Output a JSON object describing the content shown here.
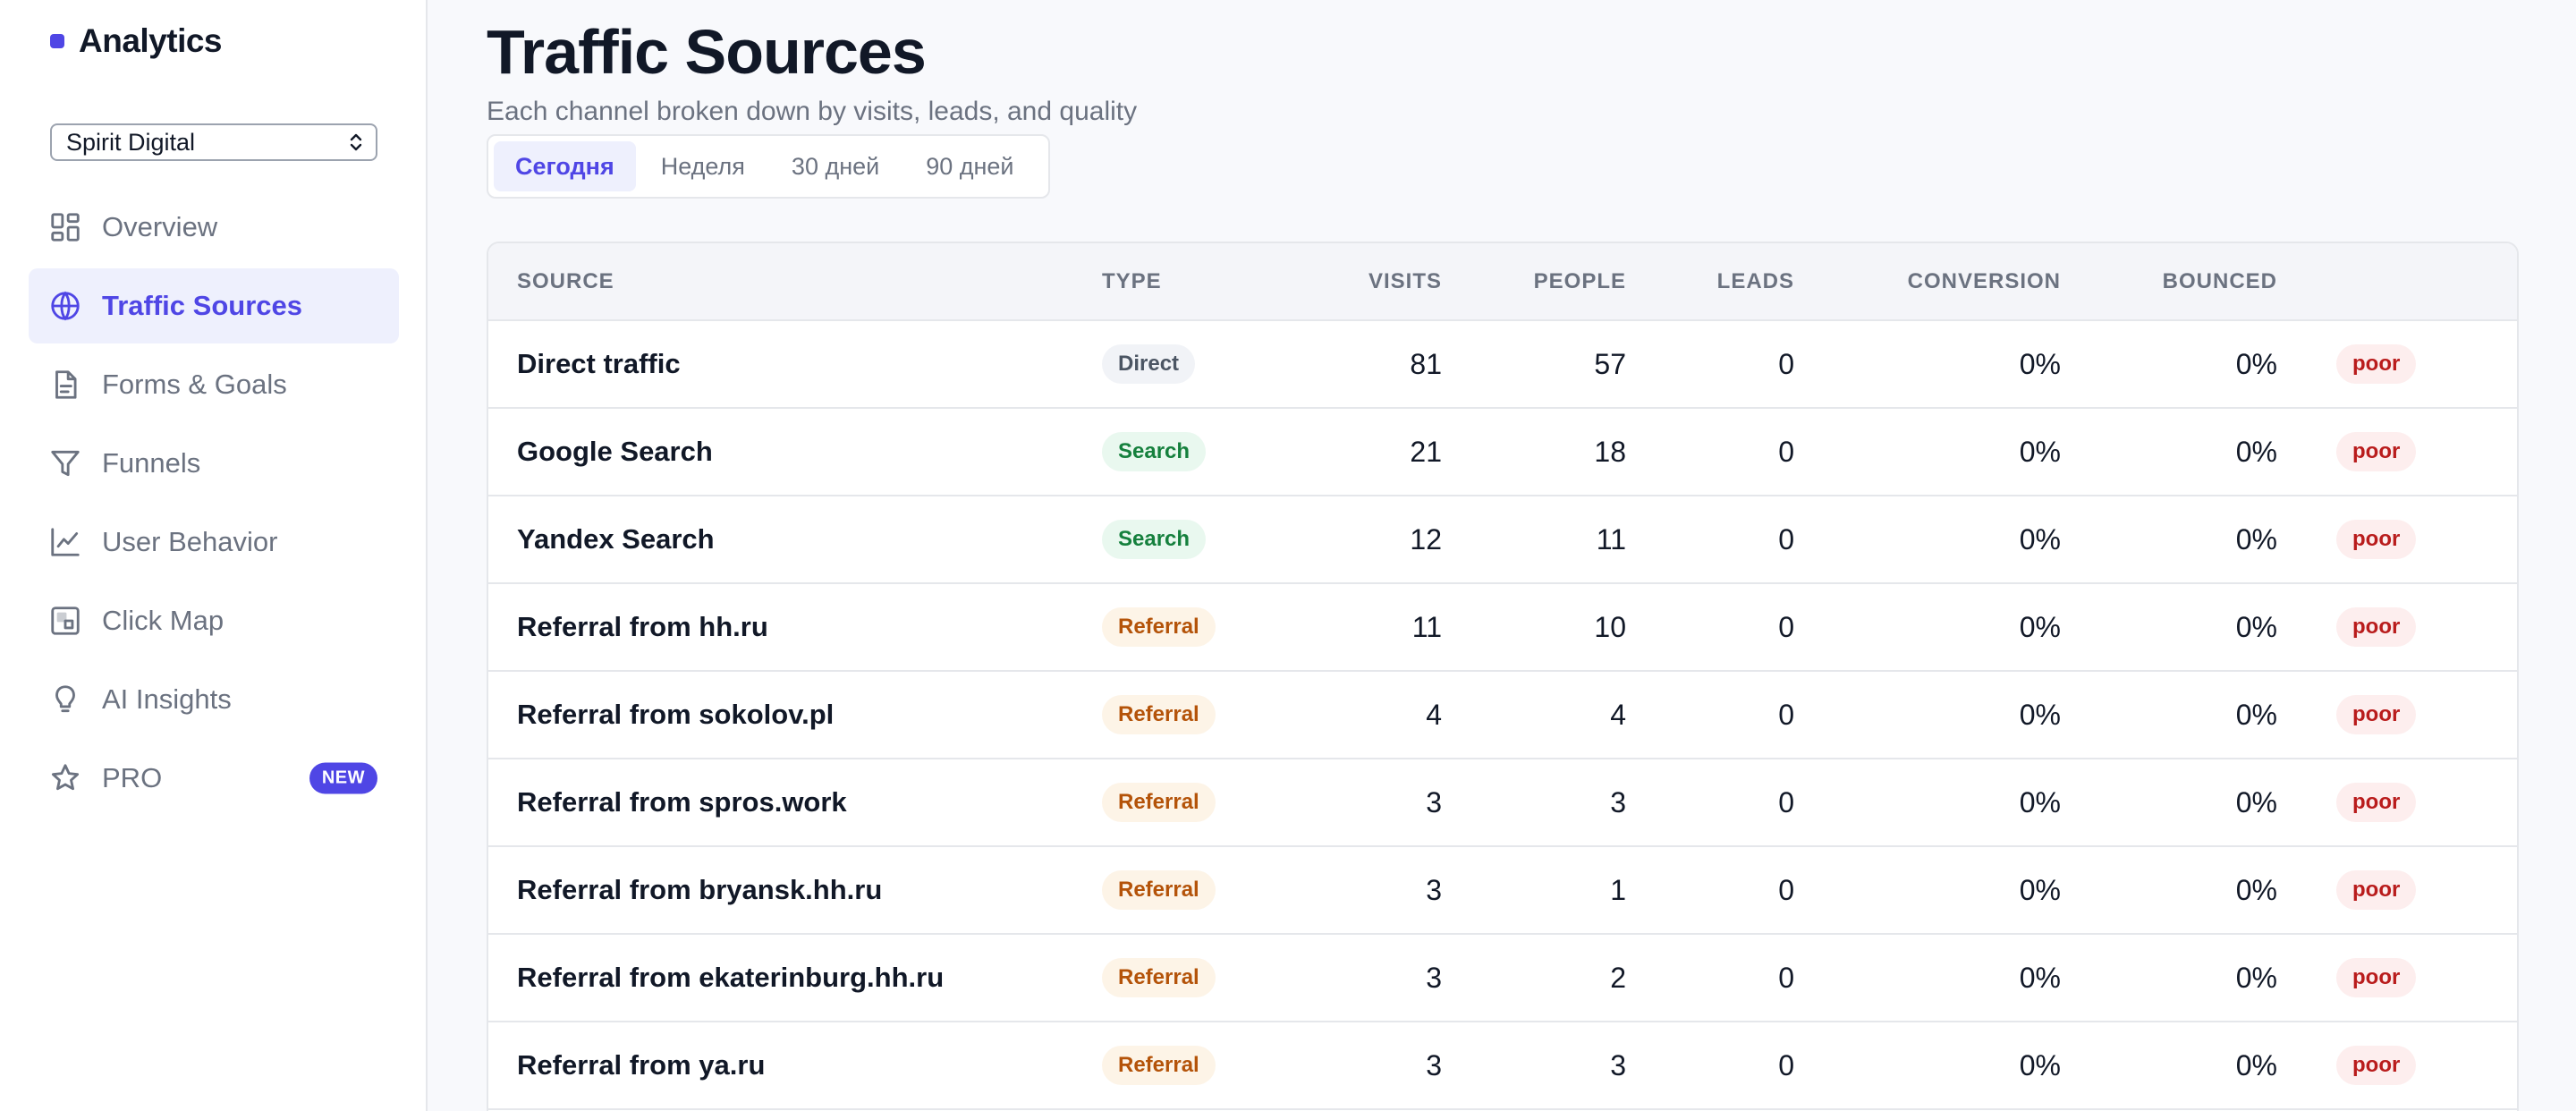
{
  "app": {
    "brand": "Analytics",
    "project": "Spirit Digital"
  },
  "sidebar": {
    "items": [
      {
        "label": "Overview",
        "icon": "grid-icon",
        "active": false
      },
      {
        "label": "Traffic Sources",
        "icon": "globe-icon",
        "active": true
      },
      {
        "label": "Forms & Goals",
        "icon": "document-icon",
        "active": false
      },
      {
        "label": "Funnels",
        "icon": "funnel-icon",
        "active": false
      },
      {
        "label": "User Behavior",
        "icon": "line-chart-icon",
        "active": false
      },
      {
        "label": "Click Map",
        "icon": "click-map-icon",
        "active": false
      },
      {
        "label": "AI Insights",
        "icon": "lightbulb-icon",
        "active": false
      },
      {
        "label": "PRO",
        "icon": "star-icon",
        "active": false,
        "badge": "NEW"
      }
    ]
  },
  "page": {
    "title": "Traffic Sources",
    "subtitle": "Each channel broken down by visits, leads, and quality"
  },
  "range_tabs": [
    {
      "label": "Сегодня",
      "active": true
    },
    {
      "label": "Неделя",
      "active": false
    },
    {
      "label": "30 дней",
      "active": false
    },
    {
      "label": "90 дней",
      "active": false
    }
  ],
  "table": {
    "columns": [
      "SOURCE",
      "TYPE",
      "VISITS",
      "PEOPLE",
      "LEADS",
      "CONVERSION",
      "BOUNCED",
      ""
    ],
    "rows": [
      {
        "source": "Direct traffic",
        "type": "Direct",
        "type_class": "direct",
        "visits": "81",
        "people": "57",
        "leads": "0",
        "conversion": "0%",
        "bounced": "0%",
        "quality": "poor"
      },
      {
        "source": "Google Search",
        "type": "Search",
        "type_class": "search",
        "visits": "21",
        "people": "18",
        "leads": "0",
        "conversion": "0%",
        "bounced": "0%",
        "quality": "poor"
      },
      {
        "source": "Yandex Search",
        "type": "Search",
        "type_class": "search",
        "visits": "12",
        "people": "11",
        "leads": "0",
        "conversion": "0%",
        "bounced": "0%",
        "quality": "poor"
      },
      {
        "source": "Referral from hh.ru",
        "type": "Referral",
        "type_class": "referral",
        "visits": "11",
        "people": "10",
        "leads": "0",
        "conversion": "0%",
        "bounced": "0%",
        "quality": "poor"
      },
      {
        "source": "Referral from sokolov.pl",
        "type": "Referral",
        "type_class": "referral",
        "visits": "4",
        "people": "4",
        "leads": "0",
        "conversion": "0%",
        "bounced": "0%",
        "quality": "poor"
      },
      {
        "source": "Referral from spros.work",
        "type": "Referral",
        "type_class": "referral",
        "visits": "3",
        "people": "3",
        "leads": "0",
        "conversion": "0%",
        "bounced": "0%",
        "quality": "poor"
      },
      {
        "source": "Referral from bryansk.hh.ru",
        "type": "Referral",
        "type_class": "referral",
        "visits": "3",
        "people": "1",
        "leads": "0",
        "conversion": "0%",
        "bounced": "0%",
        "quality": "poor"
      },
      {
        "source": "Referral from ekaterinburg.hh.ru",
        "type": "Referral",
        "type_class": "referral",
        "visits": "3",
        "people": "2",
        "leads": "0",
        "conversion": "0%",
        "bounced": "0%",
        "quality": "poor"
      },
      {
        "source": "Referral from ya.ru",
        "type": "Referral",
        "type_class": "referral",
        "visits": "3",
        "people": "3",
        "leads": "0",
        "conversion": "0%",
        "bounced": "0%",
        "quality": "poor"
      }
    ]
  },
  "colors": {
    "accent": "#4f46e5",
    "accent_soft": "#eef0fd",
    "search": "#15803d",
    "referral": "#b45309",
    "poor": "#b91c1c"
  }
}
